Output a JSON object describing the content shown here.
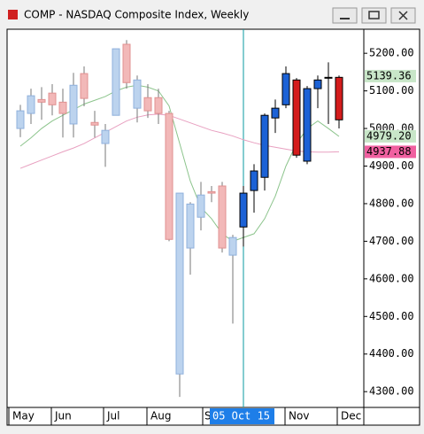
{
  "chart_data": {
    "type": "candlestick",
    "title": "COMP - NASDAQ Composite Index, Weekly",
    "open": [
      5000,
      5040,
      5077,
      5094,
      5070,
      5012,
      5146,
      5016,
      4960,
      5035,
      5224,
      5054,
      5082,
      5082,
      5040,
      4347,
      4682,
      4764,
      4832,
      4847,
      4663,
      4738,
      4835,
      4870,
      5028,
      5063,
      5129,
      4913,
      5106,
      5134,
      5136
    ],
    "high": [
      5063,
      5106,
      5110,
      5118,
      5106,
      5148,
      5165,
      5047,
      5012,
      5212,
      5235,
      5141,
      5118,
      5106,
      5047,
      4828,
      4804,
      4858,
      4847,
      4858,
      4717,
      4847,
      4905,
      5040,
      5077,
      5165,
      5134,
      5113,
      5141,
      5176,
      5141
    ],
    "low": [
      4977,
      5012,
      5023,
      5035,
      4976,
      4976,
      5059,
      4976,
      4898,
      5035,
      5106,
      5016,
      5028,
      5012,
      4700,
      4286,
      4611,
      4729,
      4804,
      4670,
      4481,
      4686,
      4776,
      4835,
      4988,
      5054,
      4922,
      4905,
      5054,
      5012,
      5000
    ],
    "close": [
      5047,
      5087,
      5070,
      5063,
      5040,
      5115,
      5080,
      5009,
      4995,
      5212,
      5122,
      5129,
      5047,
      5040,
      4705,
      4828,
      4799,
      4823,
      4828,
      4682,
      4710,
      4828,
      4887,
      5035,
      5054,
      5146,
      4929,
      5106,
      5129,
      5136,
      5023
    ],
    "colors": [
      "#bcd3ee",
      "#bcd3ee",
      "#f2b8b8",
      "#f2b8b8",
      "#f2b8b8",
      "#bcd3ee",
      "#f2b8b8",
      "#f2b8b8",
      "#bcd3ee",
      "#bcd3ee",
      "#f2b8b8",
      "#bcd3ee",
      "#f2b8b8",
      "#f2b8b8",
      "#f2b8b8",
      "#bcd3ee",
      "#bcd3ee",
      "#bcd3ee",
      "#f2b8b8",
      "#f2b8b8",
      "#bcd3ee",
      "#1c62d6",
      "#1c62d6",
      "#1c62d6",
      "#1c62d6",
      "#1c62d6",
      "#d41c1c",
      "#1c62d6",
      "#1c62d6",
      "#1c62d6",
      "#d41c1c"
    ],
    "series": [
      {
        "color": "#e8a0c0",
        "values": [
          4894,
          4905,
          4916,
          4927,
          4938,
          4948,
          4960,
          4975,
          4990,
          5005,
          5020,
          5030,
          5036,
          5038,
          5035,
          5025,
          5015,
          5005,
          4995,
          4988,
          4980,
          4970,
          4962,
          4955,
          4950,
          4945,
          4940,
          4938,
          4937,
          4937,
          4938
        ]
      },
      {
        "color": "#8cc48c",
        "values": [
          4953,
          4975,
          5000,
          5020,
          5035,
          5050,
          5065,
          5075,
          5085,
          5100,
          5110,
          5115,
          5110,
          5100,
          5060,
          4960,
          4860,
          4790,
          4760,
          4720,
          4700,
          4710,
          4720,
          4760,
          4820,
          4900,
          4960,
          5000,
          5020,
          5000,
          4979
        ]
      }
    ],
    "ylim": [
      4258,
      5264
    ],
    "yticks": [
      {
        "value": 4300,
        "label": "4300.00"
      },
      {
        "value": 4400,
        "label": "4400.00"
      },
      {
        "value": 4500,
        "label": "4500.00"
      },
      {
        "value": 4600,
        "label": "4600.00"
      },
      {
        "value": 4700,
        "label": "4700.00"
      },
      {
        "value": 4800,
        "label": "4800.00"
      },
      {
        "value": 4900,
        "label": "4900.00"
      },
      {
        "value": 5000,
        "label": "5000.00"
      },
      {
        "value": 5100,
        "label": "5100.00"
      },
      {
        "value": 5200,
        "label": "5200.00"
      }
    ],
    "x_labels": [
      "May",
      "Jun",
      "Jul",
      "Aug",
      "S",
      "Nov",
      "Dec"
    ],
    "cursor_label": "05 Oct 15",
    "price_labels": [
      {
        "value": 5139.36,
        "label": "5139.36",
        "color": "#c8e6c8"
      },
      {
        "value": 4979.2,
        "label": "4979.20",
        "color": "#c8e6c8"
      },
      {
        "value": 4937.88,
        "label": "4937.88",
        "color": "#f060a0"
      }
    ]
  }
}
